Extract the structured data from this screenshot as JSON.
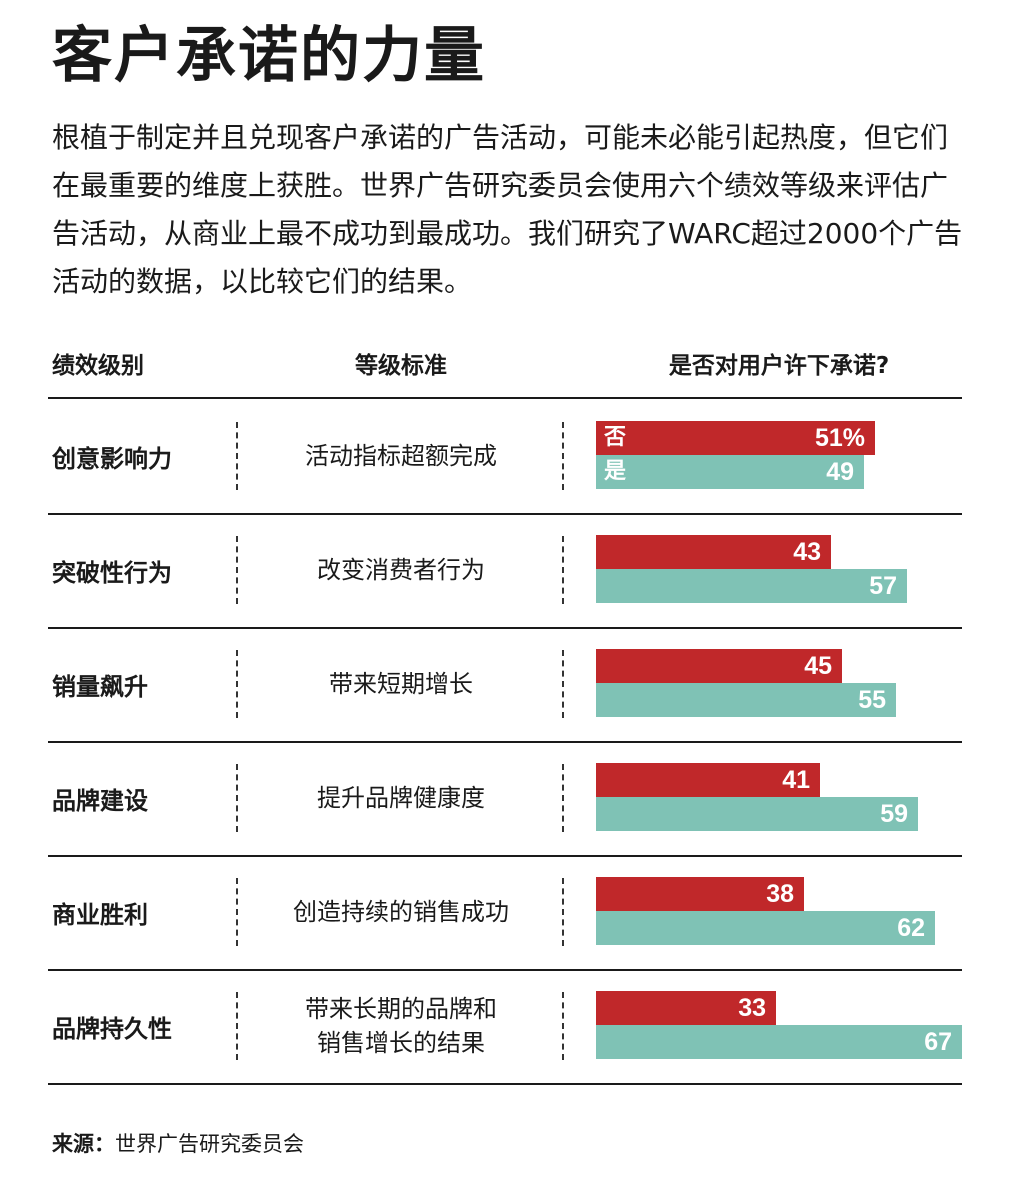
{
  "title": "客户承诺的力量",
  "intro": "根植于制定并且兑现客户承诺的广告活动，可能未必能引起热度，但它们在最重要的维度上获胜。世界广告研究委员会使用六个绩效等级来评估广告活动，从商业上最不成功到最成功。我们研究了WARC超过2000个广告活动的数据，以比较它们的结果。",
  "headers": {
    "level": "绩效级别",
    "criteria": "等级标准",
    "question": "是否对用户许下承诺?"
  },
  "colors": {
    "no": "#c0282a",
    "yes": "#7fc2b5"
  },
  "chart_data": {
    "type": "bar",
    "orientation": "horizontal",
    "categories": [
      "创意影响力",
      "突破性行为",
      "销量飙升",
      "品牌建设",
      "商业胜利",
      "品牌持久性"
    ],
    "criteria": [
      "活动指标超额完成",
      "改变消费者行为",
      "带来短期增长",
      "提升品牌健康度",
      "创造持续的销售成功",
      "带来长期的品牌和销售增长的结果"
    ],
    "series": [
      {
        "name": "否",
        "values": [
          51,
          43,
          45,
          41,
          38,
          33
        ]
      },
      {
        "name": "是",
        "values": [
          49,
          57,
          55,
          59,
          62,
          67
        ]
      }
    ],
    "value_labels": {
      "否": [
        "51%",
        "43",
        "45",
        "41",
        "38",
        "33"
      ],
      "是": [
        "49",
        "57",
        "55",
        "59",
        "62",
        "67"
      ]
    },
    "xlim": [
      0,
      67
    ]
  },
  "source": {
    "label": "来源：",
    "text": "世界广告研究委员会"
  }
}
